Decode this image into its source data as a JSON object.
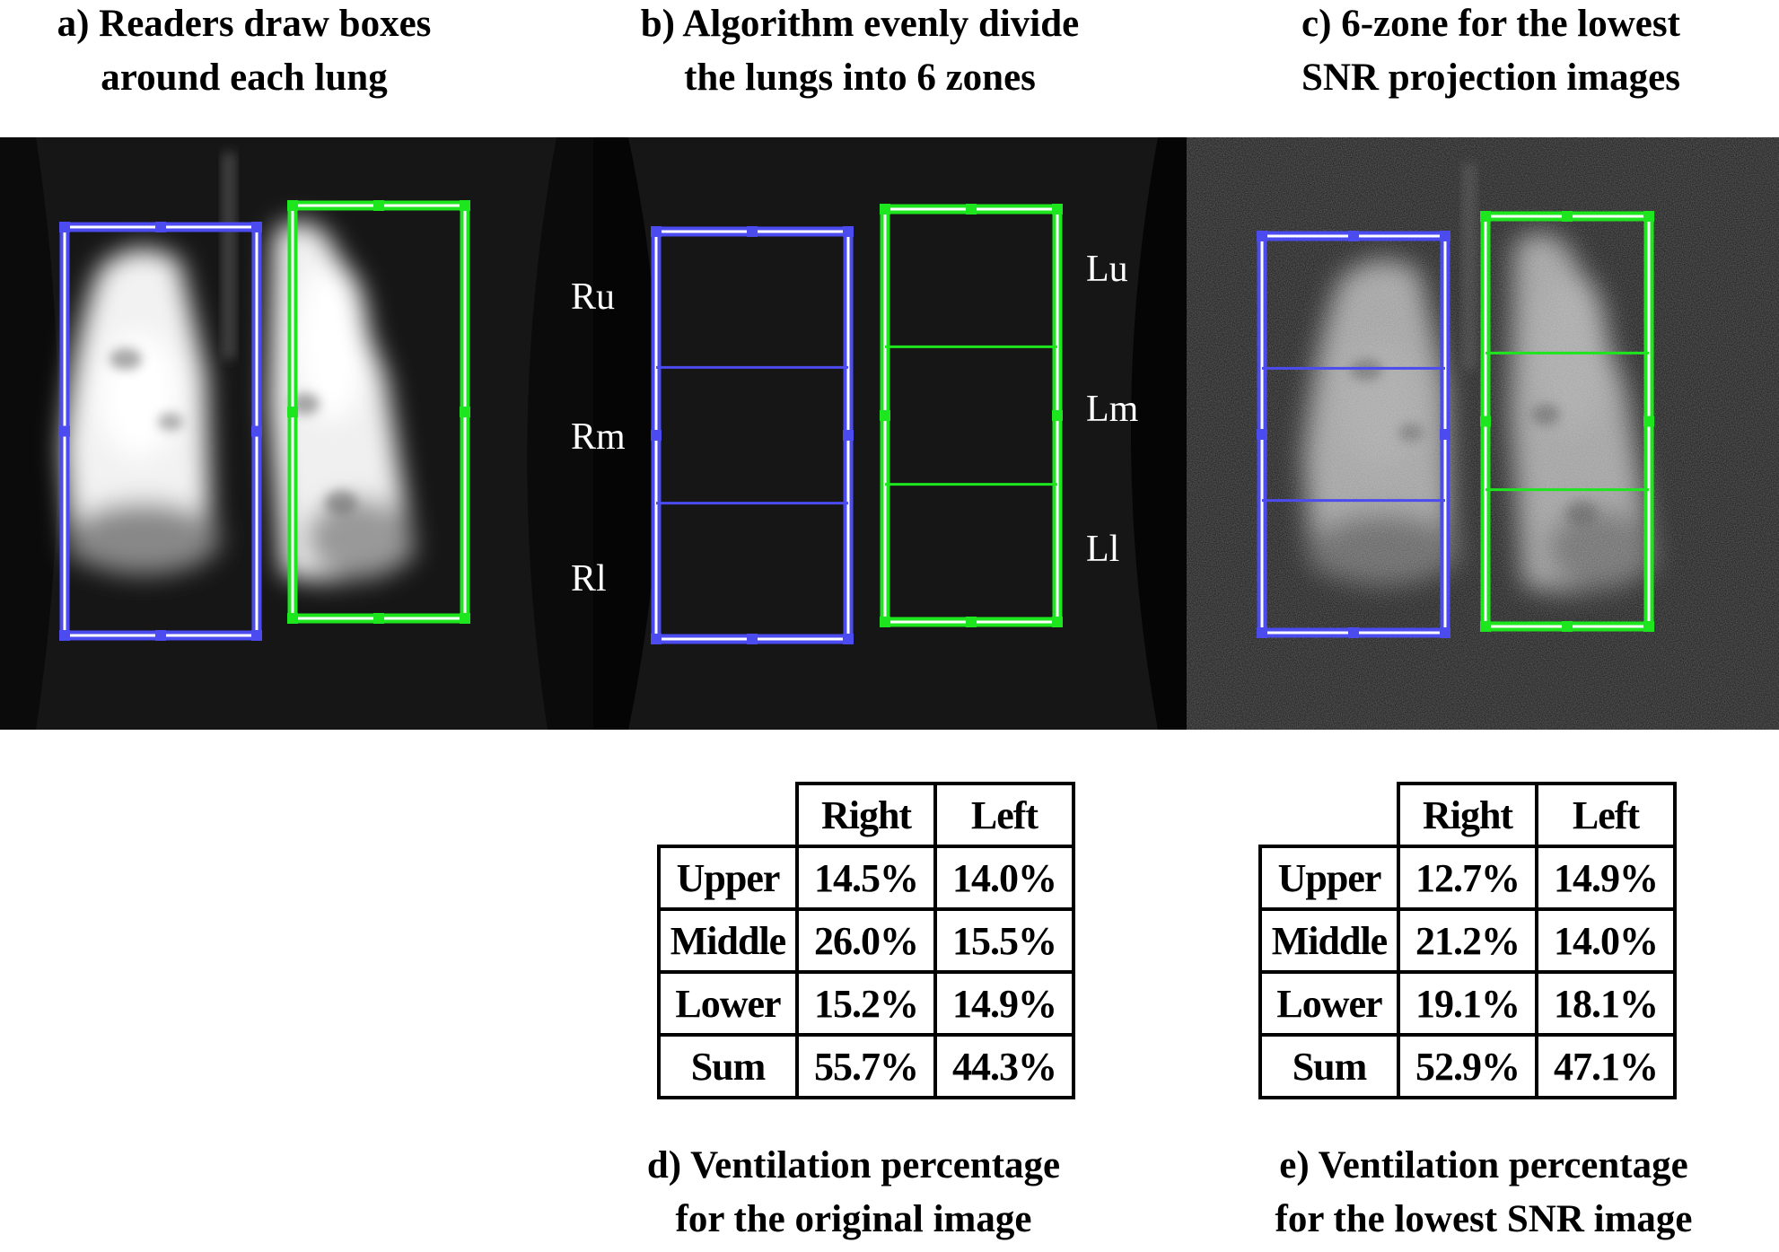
{
  "panels": {
    "a": {
      "title_line1": "a) Readers draw boxes",
      "title_line2": "around each lung"
    },
    "b": {
      "title_line1": "b) Algorithm evenly divide",
      "title_line2": "the lungs into 6 zones",
      "right_labels": [
        "Ru",
        "Rm",
        "Rl"
      ],
      "left_labels": [
        "Lu",
        "Lm",
        "Ll"
      ]
    },
    "c": {
      "title_line1": "c) 6-zone for the lowest",
      "title_line2": "SNR projection images"
    }
  },
  "colors": {
    "right_box": "#4b4bf0",
    "left_box": "#1ee61e"
  },
  "tables": {
    "d": {
      "columns": [
        "Right",
        "Left"
      ],
      "rows": [
        {
          "label": "Upper",
          "right": "14.5%",
          "left": "14.0%"
        },
        {
          "label": "Middle",
          "right": "26.0%",
          "left": "15.5%"
        },
        {
          "label": "Lower",
          "right": "15.2%",
          "left": "14.9%"
        },
        {
          "label": "Sum",
          "right": "55.7%",
          "left": "44.3%"
        }
      ],
      "caption_line1": "d) Ventilation percentage",
      "caption_line2": "for the original image"
    },
    "e": {
      "columns": [
        "Right",
        "Left"
      ],
      "rows": [
        {
          "label": "Upper",
          "right": "12.7%",
          "left": "14.9%"
        },
        {
          "label": "Middle",
          "right": "21.2%",
          "left": "14.0%"
        },
        {
          "label": "Lower",
          "right": "19.1%",
          "left": "18.1%"
        },
        {
          "label": "Sum",
          "right": "52.9%",
          "left": "47.1%"
        }
      ],
      "caption_line1": "e) Ventilation percentage",
      "caption_line2": "for the lowest SNR image"
    }
  }
}
